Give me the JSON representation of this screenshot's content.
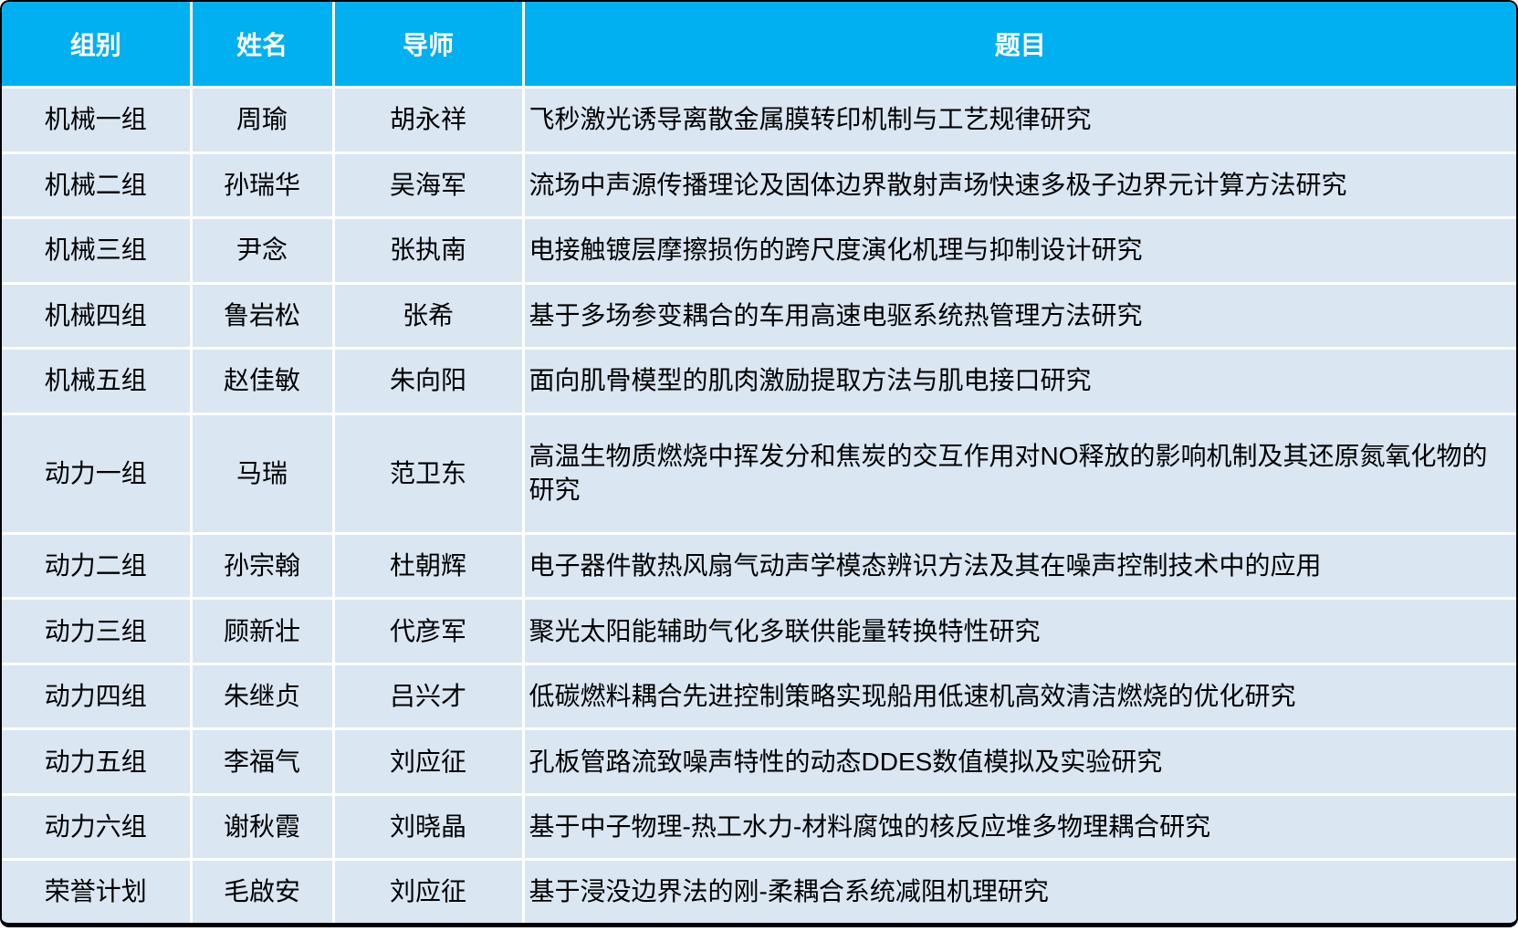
{
  "colors": {
    "header_bg": "#00B0F0",
    "header_text": "#FFFFFF",
    "row_bg": "#DAE6F2",
    "body_text": "#000000",
    "gridline": "#FFFFFF",
    "frame_border": "#000000"
  },
  "table": {
    "columns": [
      {
        "key": "group",
        "label": "组别"
      },
      {
        "key": "name",
        "label": "姓名"
      },
      {
        "key": "advisor",
        "label": "导师"
      },
      {
        "key": "title",
        "label": "题目"
      }
    ],
    "rows": [
      {
        "group": "机械一组",
        "name": "周瑜",
        "advisor": "胡永祥",
        "title": "飞秒激光诱导离散金属膜转印机制与工艺规律研究"
      },
      {
        "group": "机械二组",
        "name": "孙瑞华",
        "advisor": "吴海军",
        "title": "流场中声源传播理论及固体边界散射声场快速多极子边界元计算方法研究"
      },
      {
        "group": "机械三组",
        "name": "尹念",
        "advisor": "张执南",
        "title": "电接触镀层摩擦损伤的跨尺度演化机理与抑制设计研究"
      },
      {
        "group": "机械四组",
        "name": "鲁岩松",
        "advisor": "张希",
        "title": "基于多场参变耦合的车用高速电驱系统热管理方法研究"
      },
      {
        "group": "机械五组",
        "name": "赵佳敏",
        "advisor": "朱向阳",
        "title": "面向肌骨模型的肌肉激励提取方法与肌电接口研究"
      },
      {
        "group": "动力一组",
        "name": "马瑞",
        "advisor": "范卫东",
        "title": "高温生物质燃烧中挥发分和焦炭的交互作用对NO释放的影响机制及其还原氮氧化物的研究"
      },
      {
        "group": "动力二组",
        "name": "孙宗翰",
        "advisor": "杜朝辉",
        "title": "电子器件散热风扇气动声学模态辨识方法及其在噪声控制技术中的应用"
      },
      {
        "group": "动力三组",
        "name": "顾新壮",
        "advisor": "代彦军",
        "title": "聚光太阳能辅助气化多联供能量转换特性研究"
      },
      {
        "group": "动力四组",
        "name": "朱继贞",
        "advisor": "吕兴才",
        "title": "低碳燃料耦合先进控制策略实现船用低速机高效清洁燃烧的优化研究"
      },
      {
        "group": "动力五组",
        "name": "李福气",
        "advisor": "刘应征",
        "title": "孔板管路流致噪声特性的动态DDES数值模拟及实验研究"
      },
      {
        "group": "动力六组",
        "name": "谢秋霞",
        "advisor": "刘晓晶",
        "title": "基于中子物理-热工水力-材料腐蚀的核反应堆多物理耦合研究"
      },
      {
        "group": "荣誉计划",
        "name": "毛啟安",
        "advisor": "刘应征",
        "title": "基于浸没边界法的刚-柔耦合系统减阻机理研究"
      }
    ]
  }
}
